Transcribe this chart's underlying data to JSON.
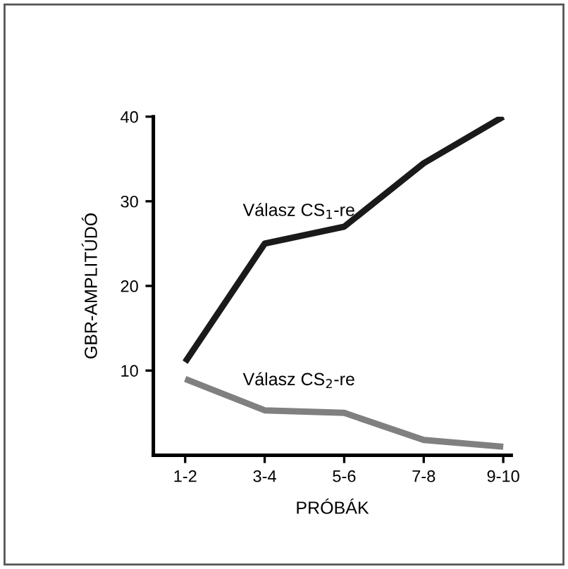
{
  "chart_data": {
    "type": "line",
    "xlabel": "PRÓBÁK",
    "ylabel": "GBR-AMPLITÚDÓ",
    "categories": [
      "1-2",
      "3-4",
      "5-6",
      "7-8",
      "9-10"
    ],
    "series": [
      {
        "name": "Válasz CS$_{1}$-re",
        "color": "#1a1a1a",
        "values": [
          11,
          25,
          27,
          34.5,
          40
        ]
      },
      {
        "name": "Válasz CS$_{2}$-re",
        "color": "#808080",
        "values": [
          9,
          5.3,
          5,
          1.8,
          1
        ]
      }
    ],
    "ylim": [
      0,
      40
    ],
    "yticks": [
      10,
      20,
      30,
      40
    ],
    "grid": false,
    "legend": false,
    "marker": "none",
    "line_style": "solid"
  }
}
